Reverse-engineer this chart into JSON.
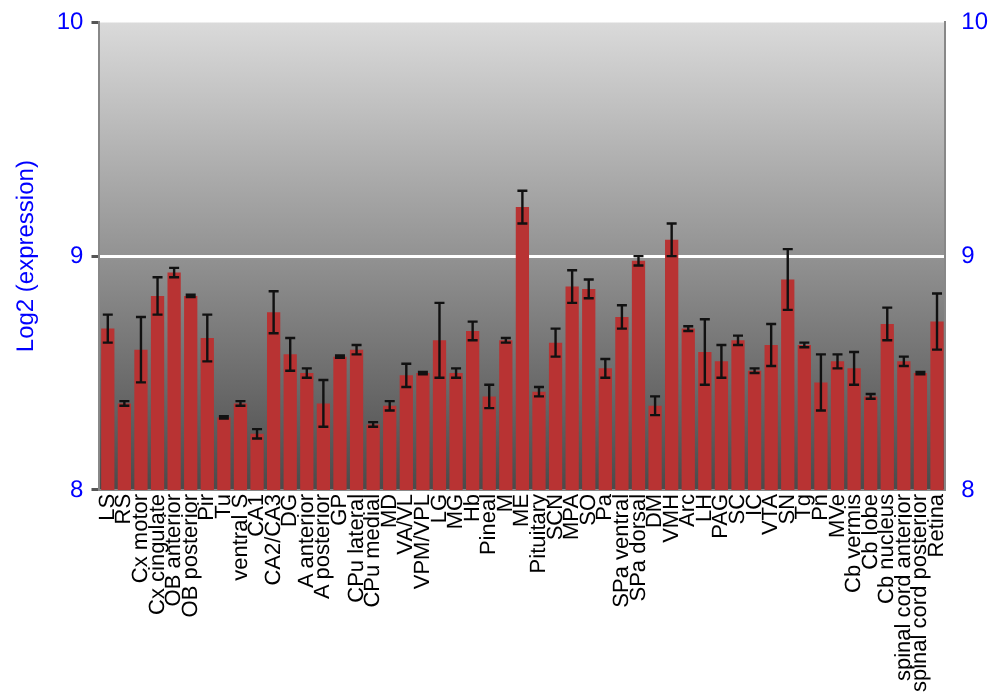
{
  "chart_data": {
    "type": "bar",
    "ylabel": "Log2 (expression)",
    "categories": [
      "LS",
      "RS",
      "Cx motor",
      "Cx cingulate",
      "OB anterior",
      "OB posterior",
      "Pir",
      "Tu",
      "ventral S",
      "CA1",
      "CA2/CA3",
      "DG",
      "A anterior",
      "A posterior",
      "GP",
      "CPu lateral",
      "CPu medial",
      "MD",
      "VA/VL",
      "VPM/VPL",
      "LG",
      "MG",
      "Hb",
      "Pineal",
      "M",
      "ME",
      "Pituitary",
      "SCN",
      "MPA",
      "SO",
      "Pa",
      "SPa ventral",
      "SPa dorsal",
      "DM",
      "VMH",
      "Arc",
      "LH",
      "PAG",
      "SC",
      "IC",
      "VTA",
      "SN",
      "Tg",
      "Pn",
      "MVe",
      "Cb vermis",
      "Cb lobe",
      "Cb nucleus",
      "spinal cord anterior",
      "spinal cord posterior",
      "Retina"
    ],
    "values": [
      8.69,
      8.37,
      8.6,
      8.83,
      8.93,
      8.83,
      8.65,
      8.31,
      8.37,
      8.24,
      8.76,
      8.58,
      8.5,
      8.37,
      8.57,
      8.6,
      8.28,
      8.36,
      8.49,
      8.5,
      8.64,
      8.5,
      8.68,
      8.4,
      8.64,
      9.21,
      8.42,
      8.63,
      8.87,
      8.86,
      8.52,
      8.74,
      8.98,
      8.36,
      9.07,
      8.69,
      8.59,
      8.55,
      8.64,
      8.51,
      8.62,
      8.9,
      8.62,
      8.46,
      8.55,
      8.52,
      8.4,
      8.71,
      8.55,
      8.5,
      8.72
    ],
    "errors": [
      0.06,
      0.01,
      0.14,
      0.08,
      0.02,
      0.005,
      0.1,
      0.005,
      0.01,
      0.02,
      0.09,
      0.07,
      0.02,
      0.1,
      0.005,
      0.02,
      0.01,
      0.02,
      0.05,
      0.005,
      0.16,
      0.02,
      0.04,
      0.05,
      0.01,
      0.07,
      0.02,
      0.06,
      0.07,
      0.04,
      0.04,
      0.05,
      0.02,
      0.04,
      0.07,
      0.01,
      0.14,
      0.07,
      0.02,
      0.01,
      0.09,
      0.13,
      0.01,
      0.12,
      0.03,
      0.07,
      0.01,
      0.07,
      0.02,
      0.005,
      0.12
    ],
    "color": "#b83333",
    "ylim": [
      8,
      10
    ],
    "yticks": [
      8,
      9,
      10
    ],
    "y2lim": [
      8,
      10
    ],
    "y2ticks": [
      8,
      9,
      10
    ],
    "grid": "y",
    "legend": false
  }
}
